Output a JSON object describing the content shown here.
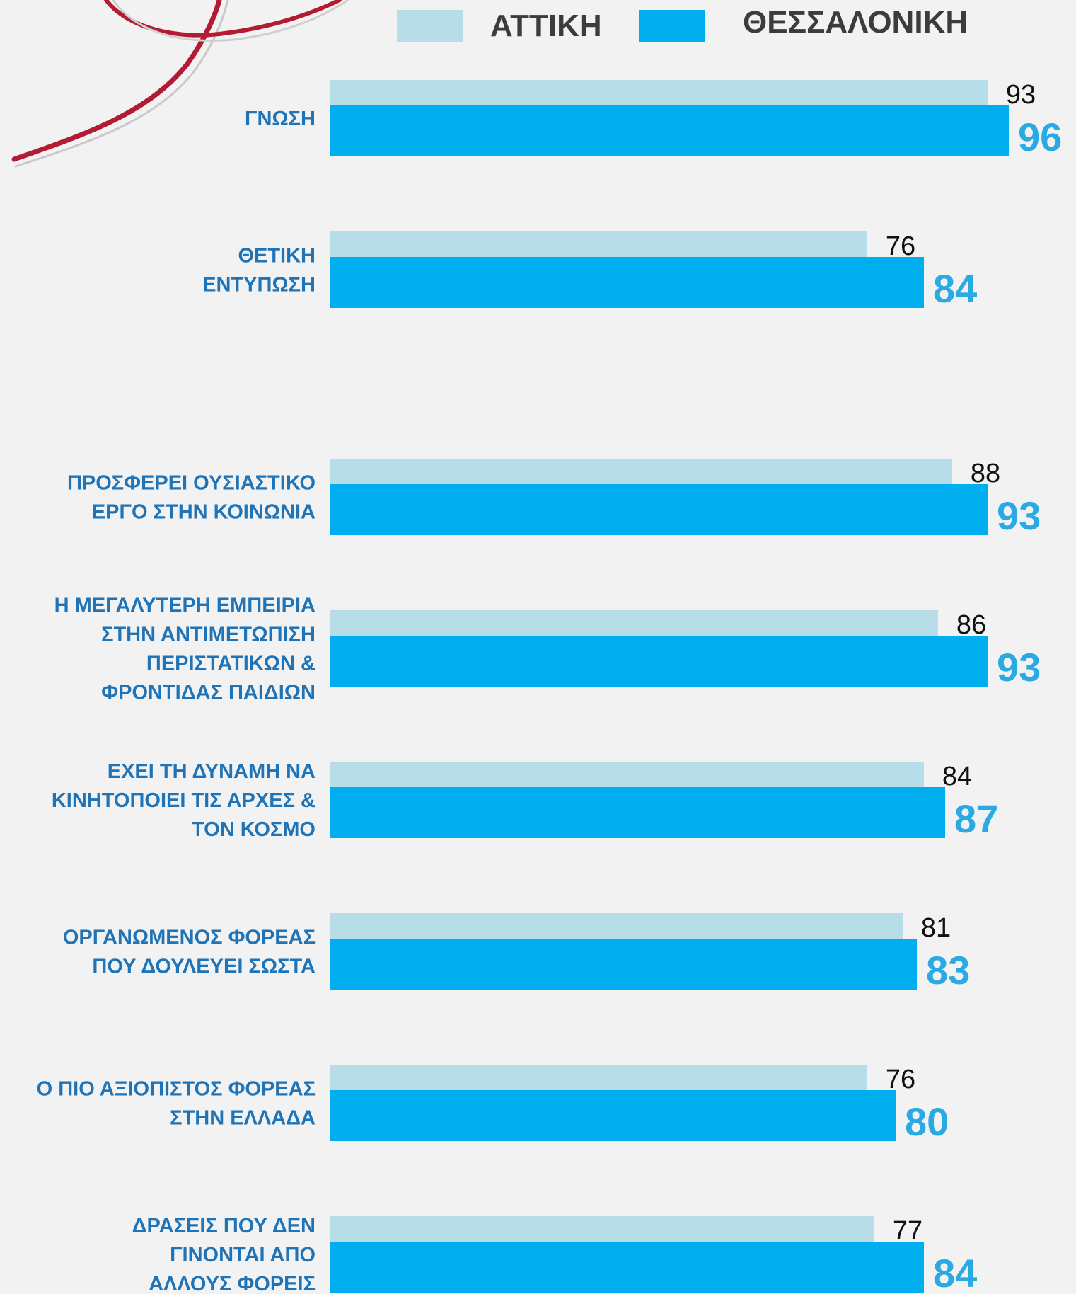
{
  "colors": {
    "background": "#f2f2f2",
    "attica": "#b7dde8",
    "thessaloniki": "#00aeef",
    "category_label": "#1f73b7",
    "thess_value_label": "#2aaae2",
    "ribbon": "#b31b34"
  },
  "decoration": {
    "ribbon": "red-ribbon-decoration"
  },
  "chart_data": {
    "type": "bar",
    "orientation": "horizontal",
    "legend": {
      "position": "top-right"
    },
    "series": [
      {
        "name": "ΑΤΤΙΚΗ",
        "values": [
          93,
          76,
          88,
          86,
          84,
          81,
          76,
          77
        ]
      },
      {
        "name": "ΘΕΣΣΑΛΟΝΙΚΗ",
        "values": [
          96,
          84,
          93,
          93,
          87,
          83,
          80,
          84
        ]
      }
    ],
    "categories": [
      [
        "ΓΝΩΣΗ"
      ],
      [
        "ΘΕΤΙΚΗ",
        "ΕΝΤΥΠΩΣΗ"
      ],
      [
        "ΠΡΟΣΦΕΡΕΙ ΟΥΣΙΑΣΤΙΚΟ",
        "ΕΡΓΟ ΣΤΗΝ ΚΟΙΝΩΝΙΑ"
      ],
      [
        "Η ΜΕΓΑΛΥΤΕΡΗ ΕΜΠΕΙΡΙΑ",
        "ΣΤΗΝ ΑΝΤΙΜΕΤΩΠΙΣΗ",
        "ΠΕΡΙΣΤΑΤΙΚΩΝ &",
        "ΦΡΟΝΤΙΔΑΣ ΠΑΙΔΙΩΝ"
      ],
      [
        "ΕΧΕΙ ΤΗ ΔΥΝΑΜΗ ΝΑ",
        "ΚΙΝΗΤΟΠΟΙΕΙ ΤΙΣ ΑΡΧΕΣ &",
        "ΤΟΝ ΚΟΣΜΟ"
      ],
      [
        "ΟΡΓΑΝΩΜΕΝΟΣ ΦΟΡΕΑΣ",
        "ΠΟΥ ΔΟΥΛΕΥΕΙ ΣΩΣΤΑ"
      ],
      [
        "Ο ΠΙΟ ΑΞΙΟΠΙΣΤΟΣ ΦΟΡΕΑΣ",
        "ΣΤΗΝ ΕΛΛΑΔΑ"
      ],
      [
        "ΔΡΑΣΕΙΣ ΠΟΥ ΔΕΝ",
        "ΓΙΝΟΝΤΑΙ ΑΠΟ",
        "ΑΛΛΟΥΣ ΦΟΡΕΙΣ"
      ]
    ],
    "xlim": [
      0,
      100
    ],
    "grid": false,
    "title": "",
    "xlabel": "",
    "ylabel": ""
  }
}
